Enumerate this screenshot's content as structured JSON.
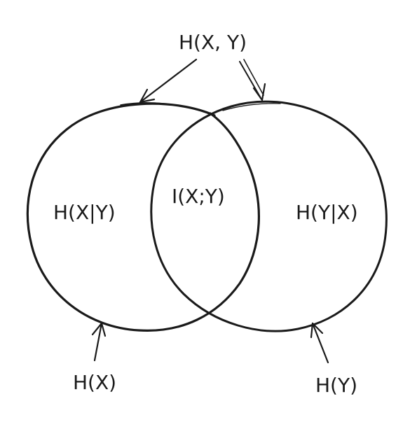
{
  "diagram": {
    "labels": {
      "joint_entropy": "H(X, Y)",
      "conditional_x_given_y": "H(X|Y)",
      "mutual_information": "I(X;Y)",
      "conditional_y_given_x": "H(Y|X)",
      "entropy_x": "H(X)",
      "entropy_y": "H(Y)"
    },
    "colors": {
      "ink": "#1a1a1a",
      "background": "#ffffff"
    }
  }
}
